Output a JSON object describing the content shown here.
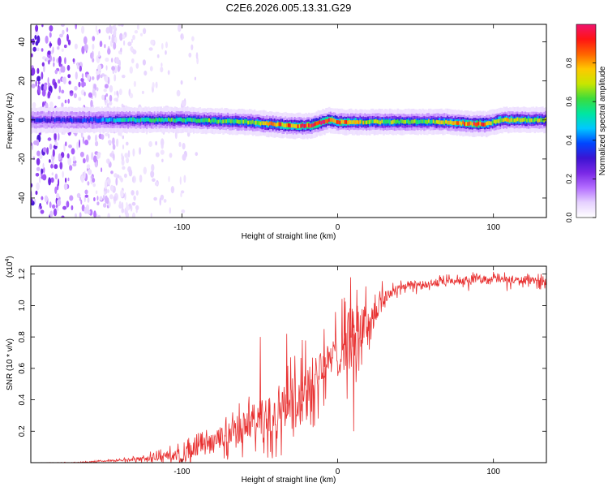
{
  "figure": {
    "title": "C2E6.2026.005.13.31.G29"
  },
  "chart_data": [
    {
      "type": "heatmap",
      "title": "C2E6.2026.005.13.31.G29",
      "xlabel": "Height of straight line (km)",
      "ylabel": "Frequency (Hz)",
      "xlim": [
        -197,
        134
      ],
      "ylim": [
        -50,
        49
      ],
      "xticks": [
        -100,
        0,
        100
      ],
      "xtick_labels": [
        "-100",
        "0",
        "100"
      ],
      "yticks": [
        -40,
        -20,
        0,
        20,
        40
      ],
      "ytick_labels": [
        "-40",
        "-20",
        "0",
        "20",
        "40"
      ],
      "colorbar": {
        "label": "Normalized spectral amplitude",
        "range": [
          0.0,
          1.0
        ],
        "ticks": [
          0.0,
          0.2,
          0.4,
          0.6,
          0.8
        ],
        "tick_labels": [
          "0.0",
          "0.2",
          "0.4",
          "0.6",
          "0.8"
        ],
        "colormap": [
          "#ffffff",
          "#e6d2ff",
          "#b46eff",
          "#7a28e6",
          "#3c14d2",
          "#0046ff",
          "#00c8ff",
          "#00e6a0",
          "#3cdc3c",
          "#c8e600",
          "#ffc800",
          "#ff6400",
          "#ff1414",
          "#f0146e"
        ]
      },
      "ridge": {
        "description": "Spectral energy concentrated near the carrier; broadband noise for heights below about -130 km",
        "noise_region_x": [
          -197,
          -130
        ],
        "center_frequency_by_height": [
          [
            -197,
            0
          ],
          [
            -150,
            0
          ],
          [
            -100,
            0
          ],
          [
            -60,
            -1
          ],
          [
            -45,
            -2
          ],
          [
            -30,
            -3
          ],
          [
            -18,
            -3
          ],
          [
            -10,
            -1
          ],
          [
            -5,
            0
          ],
          [
            0,
            -1
          ],
          [
            40,
            -1
          ],
          [
            70,
            -1
          ],
          [
            85,
            -2
          ],
          [
            95,
            -2
          ],
          [
            105,
            0
          ],
          [
            134,
            0
          ]
        ],
        "peak_amplitude_by_height": [
          [
            -197,
            0.3
          ],
          [
            -160,
            0.35
          ],
          [
            -140,
            0.5
          ],
          [
            -100,
            0.58
          ],
          [
            -60,
            0.62
          ],
          [
            -35,
            0.82
          ],
          [
            -20,
            0.85
          ],
          [
            -10,
            0.88
          ],
          [
            0,
            0.85
          ],
          [
            20,
            0.65
          ],
          [
            60,
            0.62
          ],
          [
            80,
            0.8
          ],
          [
            90,
            0.92
          ],
          [
            100,
            0.68
          ],
          [
            110,
            0.75
          ],
          [
            134,
            0.62
          ]
        ]
      }
    },
    {
      "type": "line",
      "xlabel": "Height of straight line (km)",
      "ylabel": "SNR (10 * v/v)",
      "y_scale_label": "(x10",
      "y_scale_exponent": "4",
      "xlim": [
        -197,
        134
      ],
      "ylim": [
        0,
        1.25
      ],
      "xticks": [
        -100,
        0,
        100
      ],
      "xtick_labels": [
        "-100",
        "0",
        "100"
      ],
      "yticks": [
        0.2,
        0.4,
        0.6,
        0.8,
        1.0,
        1.2
      ],
      "ytick_labels": [
        "0.2",
        "0.4",
        "0.6",
        "0.8",
        "1.0",
        "1.2"
      ],
      "color": "#e83030",
      "series": [
        {
          "name": "SNR",
          "x": [
            -197,
            -170,
            -150,
            -130,
            -120,
            -100,
            -90,
            -80,
            -70,
            -60,
            -50,
            -40,
            -30,
            -20,
            -15,
            -10,
            -5,
            0,
            5,
            10,
            15,
            20,
            25,
            30,
            35,
            40,
            50,
            60,
            70,
            80,
            90,
            100,
            110,
            120,
            134
          ],
          "values": [
            0.0,
            0.0,
            0.01,
            0.02,
            0.03,
            0.05,
            0.08,
            0.13,
            0.18,
            0.23,
            0.28,
            0.31,
            0.4,
            0.48,
            0.52,
            0.6,
            0.65,
            0.7,
            0.76,
            0.82,
            0.86,
            0.9,
            0.98,
            1.05,
            1.09,
            1.12,
            1.13,
            1.14,
            1.15,
            1.16,
            1.17,
            1.17,
            1.16,
            1.16,
            1.15
          ]
        }
      ],
      "noise_amplitude_by_height": [
        [
          -197,
          0.0
        ],
        [
          -140,
          0.01
        ],
        [
          -110,
          0.06
        ],
        [
          -80,
          0.15
        ],
        [
          -60,
          0.22
        ],
        [
          -40,
          0.3
        ],
        [
          -20,
          0.32
        ],
        [
          -5,
          0.25
        ],
        [
          10,
          0.45
        ],
        [
          20,
          0.2
        ],
        [
          35,
          0.08
        ],
        [
          60,
          0.05
        ],
        [
          134,
          0.05
        ]
      ],
      "spikes": [
        {
          "x": -50,
          "y": 0.8
        },
        {
          "x": -33,
          "y": 0.82
        },
        {
          "x": -23,
          "y": 0.78
        },
        {
          "x": -9,
          "y": 0.85
        },
        {
          "x": 4,
          "y": 1.05
        },
        {
          "x": 8,
          "y": 1.18
        },
        {
          "x": 10,
          "y": 0.2
        },
        {
          "x": 12,
          "y": 1.1
        },
        {
          "x": 20,
          "y": 0.72
        }
      ]
    }
  ]
}
